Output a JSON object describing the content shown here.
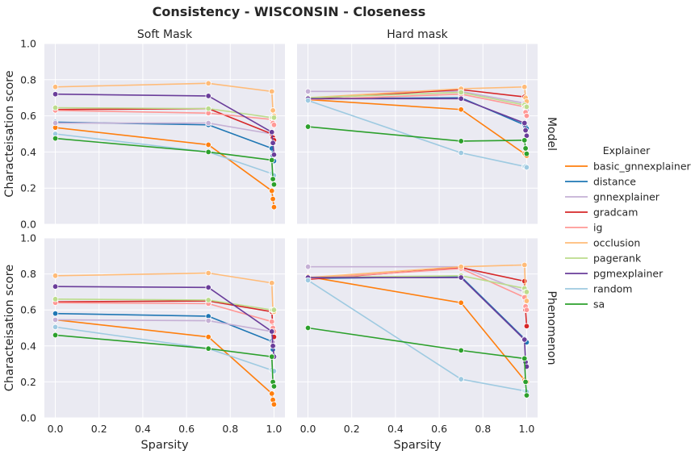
{
  "chart_data": {
    "type": "line",
    "title": "Consistency - WISCONSIN - Closeness",
    "xlabel": "Sparsity",
    "ylabel": "Characteisation score",
    "xlim": [
      -0.05,
      1.05
    ],
    "ylim": [
      0,
      1.0
    ],
    "xticks": [
      "0.0",
      "0.2",
      "0.4",
      "0.6",
      "0.8",
      "1.0"
    ],
    "yticks": [
      "0.0",
      "0.2",
      "0.4",
      "0.6",
      "0.8",
      "1.0"
    ],
    "grid": true,
    "legend": {
      "title": "Explainer",
      "placement": "right"
    },
    "column_titles": [
      "Soft Mask",
      "Hard mask"
    ],
    "row_titles": [
      "Model",
      "Phenomenon"
    ],
    "x": [
      0.0,
      0.7,
      0.99,
      0.995,
      1.0
    ],
    "series_meta": [
      {
        "name": "basic_gnnexplainer",
        "color": "#ff7f0e"
      },
      {
        "name": "distance",
        "color": "#1f77b4"
      },
      {
        "name": "gnnexplainer",
        "color": "#c5b0d5"
      },
      {
        "name": "gradcam",
        "color": "#d62728"
      },
      {
        "name": "ig",
        "color": "#ff9896"
      },
      {
        "name": "occlusion",
        "color": "#ffbb78"
      },
      {
        "name": "pagerank",
        "color": "#bcdc8c"
      },
      {
        "name": "pgmexplainer",
        "color": "#6a3d9a"
      },
      {
        "name": "random",
        "color": "#9ecae1"
      },
      {
        "name": "sa",
        "color": "#2ca02c"
      }
    ],
    "panels": [
      {
        "column": "Soft Mask",
        "row": "Model",
        "series": [
          {
            "name": "basic_gnnexplainer",
            "values": [
              0.535,
              0.44,
              0.185,
              0.14,
              0.095
            ]
          },
          {
            "name": "distance",
            "values": [
              0.565,
              0.55,
              0.42,
              0.38,
              0.35
            ]
          },
          {
            "name": "gnnexplainer",
            "values": [
              0.56,
              0.56,
              0.5,
              0.47,
              0.45
            ]
          },
          {
            "name": "gradcam",
            "values": [
              0.635,
              0.64,
              0.5,
              0.48,
              0.465
            ]
          },
          {
            "name": "ig",
            "values": [
              0.63,
              0.615,
              0.58,
              0.56,
              0.55
            ]
          },
          {
            "name": "occlusion",
            "values": [
              0.76,
              0.78,
              0.735,
              0.63,
              0.6
            ]
          },
          {
            "name": "pagerank",
            "values": [
              0.645,
              0.64,
              0.59,
              0.59,
              0.59
            ]
          },
          {
            "name": "pgmexplainer",
            "values": [
              0.72,
              0.71,
              0.51,
              0.45,
              0.385
            ]
          },
          {
            "name": "random",
            "values": [
              0.5,
              0.4,
              0.28,
              0.275,
              0.27
            ]
          },
          {
            "name": "sa",
            "values": [
              0.475,
              0.4,
              0.355,
              0.25,
              0.22
            ]
          }
        ]
      },
      {
        "column": "Hard mask",
        "row": "Model",
        "series": [
          {
            "name": "basic_gnnexplainer",
            "values": [
              0.69,
              0.635,
              0.39,
              0.385,
              0.38
            ]
          },
          {
            "name": "distance",
            "values": [
              0.695,
              0.7,
              0.55,
              0.54,
              0.53
            ]
          },
          {
            "name": "gnnexplainer",
            "values": [
              0.735,
              0.735,
              0.67,
              0.64,
              0.63
            ]
          },
          {
            "name": "gradcam",
            "values": [
              0.695,
              0.745,
              0.705,
              0.65,
              0.6
            ]
          },
          {
            "name": "ig",
            "values": [
              0.69,
              0.72,
              0.65,
              0.62,
              0.6
            ]
          },
          {
            "name": "occlusion",
            "values": [
              0.7,
              0.75,
              0.76,
              0.7,
              0.68
            ]
          },
          {
            "name": "pagerank",
            "values": [
              0.7,
              0.73,
              0.66,
              0.65,
              0.65
            ]
          },
          {
            "name": "pgmexplainer",
            "values": [
              0.695,
              0.695,
              0.56,
              0.52,
              0.49
            ]
          },
          {
            "name": "random",
            "values": [
              0.685,
              0.395,
              0.32,
              0.32,
              0.315
            ]
          },
          {
            "name": "sa",
            "values": [
              0.54,
              0.46,
              0.465,
              0.42,
              0.39
            ]
          }
        ]
      },
      {
        "column": "Soft Mask",
        "row": "Phenomenon",
        "series": [
          {
            "name": "basic_gnnexplainer",
            "values": [
              0.545,
              0.45,
              0.135,
              0.1,
              0.075
            ]
          },
          {
            "name": "distance",
            "values": [
              0.58,
              0.565,
              0.425,
              0.38,
              0.345
            ]
          },
          {
            "name": "gnnexplainer",
            "values": [
              0.545,
              0.54,
              0.48,
              0.42,
              0.4
            ]
          },
          {
            "name": "gradcam",
            "values": [
              0.645,
              0.65,
              0.59,
              0.5,
              0.45
            ]
          },
          {
            "name": "ig",
            "values": [
              0.64,
              0.635,
              0.535,
              0.5,
              0.48
            ]
          },
          {
            "name": "occlusion",
            "values": [
              0.79,
              0.805,
              0.75,
              0.6,
              0.59
            ]
          },
          {
            "name": "pagerank",
            "values": [
              0.66,
              0.655,
              0.6,
              0.6,
              0.6
            ]
          },
          {
            "name": "pgmexplainer",
            "values": [
              0.73,
              0.725,
              0.48,
              0.4,
              0.34
            ]
          },
          {
            "name": "random",
            "values": [
              0.505,
              0.385,
              0.265,
              0.26,
              0.26
            ]
          },
          {
            "name": "sa",
            "values": [
              0.46,
              0.385,
              0.34,
              0.2,
              0.175
            ]
          }
        ]
      },
      {
        "column": "Hard mask",
        "row": "Phenomenon",
        "series": [
          {
            "name": "basic_gnnexplainer",
            "values": [
              0.785,
              0.64,
              0.21,
              0.205,
              0.2
            ]
          },
          {
            "name": "distance",
            "values": [
              0.775,
              0.785,
              0.44,
              0.43,
              0.42
            ]
          },
          {
            "name": "gnnexplainer",
            "values": [
              0.84,
              0.84,
              0.7,
              0.65,
              0.6
            ]
          },
          {
            "name": "gradcam",
            "values": [
              0.77,
              0.835,
              0.76,
              0.6,
              0.51
            ]
          },
          {
            "name": "ig",
            "values": [
              0.775,
              0.83,
              0.67,
              0.62,
              0.6
            ]
          },
          {
            "name": "occlusion",
            "values": [
              0.78,
              0.84,
              0.85,
              0.7,
              0.65
            ]
          },
          {
            "name": "pagerank",
            "values": [
              0.78,
              0.79,
              0.72,
              0.7,
              0.7
            ]
          },
          {
            "name": "pgmexplainer",
            "values": [
              0.78,
              0.78,
              0.435,
              0.31,
              0.285
            ]
          },
          {
            "name": "random",
            "values": [
              0.765,
              0.215,
              0.15,
              0.148,
              0.145
            ]
          },
          {
            "name": "sa",
            "values": [
              0.5,
              0.375,
              0.33,
              0.2,
              0.125
            ]
          }
        ]
      }
    ]
  }
}
